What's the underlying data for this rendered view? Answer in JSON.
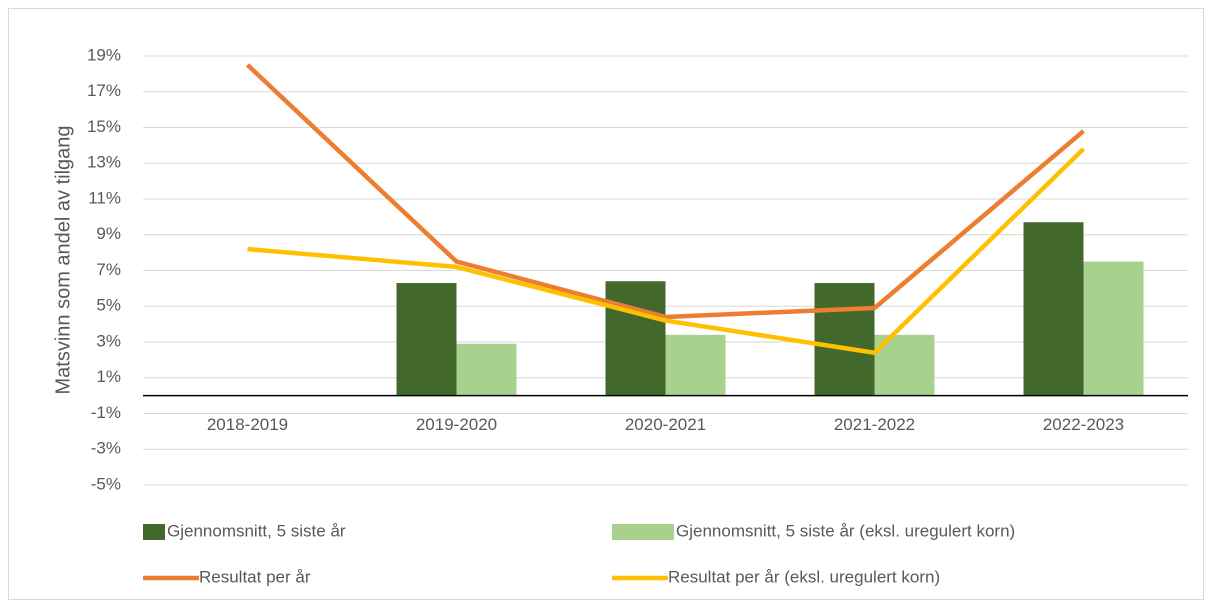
{
  "chart_data": {
    "type": "bar",
    "y_label": "Matsvinn som andel av tilgang",
    "categories": [
      "2018-2019",
      "2019-2020",
      "2020-2021",
      "2021-2022",
      "2022-2023"
    ],
    "series": [
      {
        "name": "Gjennomsnitt, 5 siste år",
        "type": "bar",
        "color": "#43682b",
        "values": [
          null,
          6.3,
          6.4,
          6.3,
          9.7
        ]
      },
      {
        "name": "Gjennomsnitt, 5 siste år (eksl. uregulert korn)",
        "type": "bar",
        "color": "#a9d18e",
        "values": [
          null,
          2.9,
          3.4,
          3.4,
          7.5
        ]
      },
      {
        "name": "Resultat per år",
        "type": "line",
        "color": "#ed7d31",
        "values": [
          18.5,
          7.5,
          4.4,
          4.9,
          14.8
        ]
      },
      {
        "name": "Resultat per år (eksl. uregulert korn)",
        "type": "line",
        "color": "#ffc000",
        "values": [
          8.2,
          7.2,
          4.2,
          2.4,
          13.8
        ]
      }
    ],
    "ylim": [
      -5,
      19
    ],
    "yticks": [
      {
        "value": -5,
        "label": "-5%"
      },
      {
        "value": -3,
        "label": "-3%"
      },
      {
        "value": -1,
        "label": "-1%"
      },
      {
        "value": 1,
        "label": "1%"
      },
      {
        "value": 3,
        "label": "3%"
      },
      {
        "value": 5,
        "label": "5%"
      },
      {
        "value": 7,
        "label": "7%"
      },
      {
        "value": 9,
        "label": "9%"
      },
      {
        "value": 11,
        "label": "11%"
      },
      {
        "value": 13,
        "label": "13%"
      },
      {
        "value": 15,
        "label": "15%"
      },
      {
        "value": 17,
        "label": "17%"
      },
      {
        "value": 19,
        "label": "19%"
      }
    ],
    "grid": true
  }
}
